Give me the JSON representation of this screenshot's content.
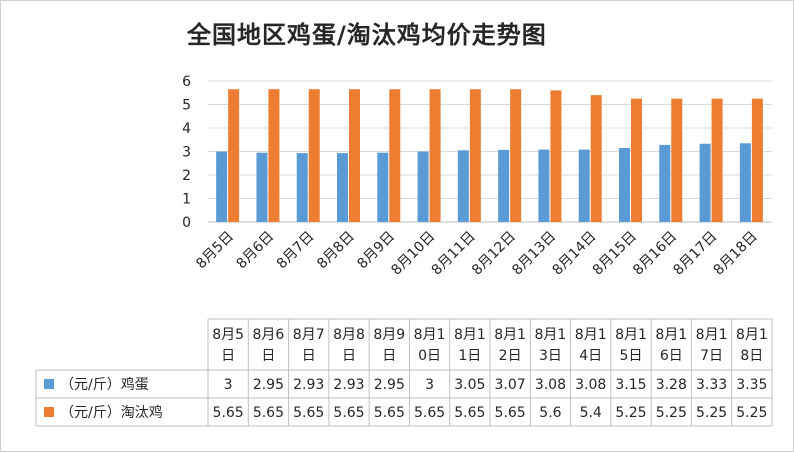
{
  "chart_data": {
    "type": "bar",
    "title": "全国地区鸡蛋/淘汰鸡均价走势图",
    "categories": [
      "8月5日",
      "8月6日",
      "8月7日",
      "8月8日",
      "8月9日",
      "8月10日",
      "8月11日",
      "8月12日",
      "8月13日",
      "8月14日",
      "8月15日",
      "8月16日",
      "8月17日",
      "8月18日"
    ],
    "series": [
      {
        "name": "（元/斤）鸡蛋",
        "color": "#5b9bd5",
        "values": [
          3,
          2.95,
          2.93,
          2.93,
          2.95,
          3,
          3.05,
          3.07,
          3.08,
          3.08,
          3.15,
          3.28,
          3.33,
          3.35
        ],
        "table_values": [
          "3",
          "2.95",
          "2.93",
          "2.93",
          "2.95",
          "3",
          "3.05",
          "3.07",
          "3.08",
          "3.08",
          "3.15",
          "3.28",
          "3.33",
          "3.35"
        ]
      },
      {
        "name": "（元/斤）淘汰鸡",
        "color": "#ed7d31",
        "values": [
          5.65,
          5.65,
          5.65,
          5.65,
          5.65,
          5.65,
          5.65,
          5.65,
          5.6,
          5.4,
          5.25,
          5.25,
          5.25,
          5.25
        ],
        "table_values": [
          "5.65",
          "5.65",
          "5.65",
          "5.65",
          "5.65",
          "5.65",
          "5.65",
          "5.65",
          "5.6",
          "5.4",
          "5.25",
          "5.25",
          "5.25",
          "5.25"
        ]
      }
    ],
    "yticks": [
      "0",
      "1",
      "2",
      "3",
      "4",
      "5",
      "6"
    ],
    "ylim": [
      0,
      6
    ],
    "grid": true,
    "legend": "data-table"
  }
}
